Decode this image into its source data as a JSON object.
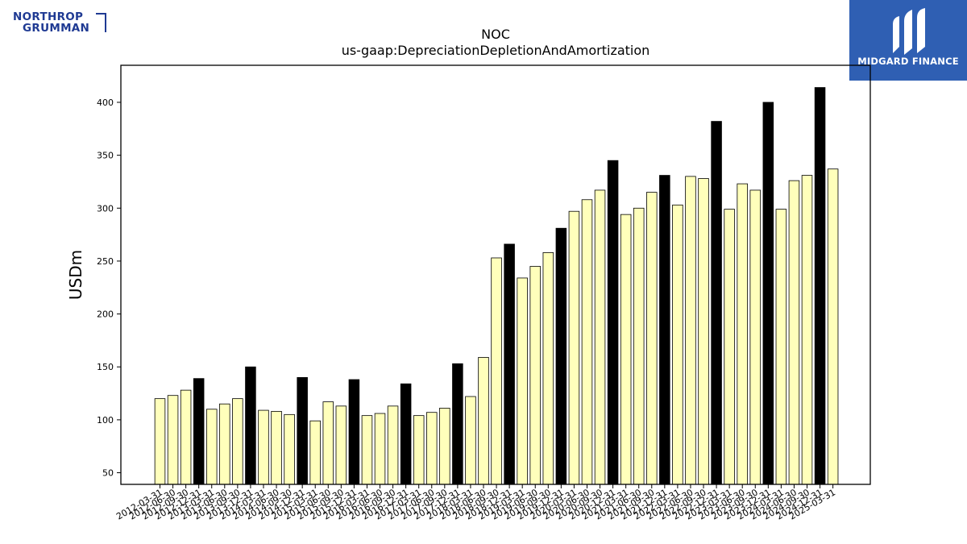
{
  "header": {
    "left_logo_line1": "NORTHROP",
    "left_logo_line2": "GRUMMAN",
    "right_logo_text": "MIDGARD FINANCE",
    "left_logo_color": "#1f3a93",
    "right_logo_bg": "#2f5fb3"
  },
  "chart_data": {
    "type": "bar",
    "title": "NOC",
    "subtitle": "us-gaap:DepreciationDepletionAndAmortization",
    "ylabel": "USDm",
    "xlabel": "",
    "ylim": [
      39,
      435
    ],
    "yticks": [
      50,
      100,
      150,
      200,
      250,
      300,
      350,
      400
    ],
    "grid": false,
    "colors": {
      "quarter": "#ffffbb",
      "year_end": "#000000",
      "edge": "#000000"
    },
    "categories": [
      "2012-03-31",
      "2012-06-30",
      "2012-09-30",
      "2012-12-31",
      "2013-03-31",
      "2013-06-30",
      "2013-09-30",
      "2013-12-31",
      "2014-03-31",
      "2014-06-30",
      "2014-09-30",
      "2014-12-31",
      "2015-03-31",
      "2015-06-30",
      "2015-09-30",
      "2015-12-31",
      "2016-03-31",
      "2016-06-30",
      "2016-09-30",
      "2016-12-31",
      "2017-03-31",
      "2017-06-30",
      "2017-09-30",
      "2017-12-31",
      "2018-03-31",
      "2018-06-30",
      "2018-09-30",
      "2018-12-31",
      "2019-03-31",
      "2019-06-30",
      "2019-09-30",
      "2019-12-31",
      "2020-03-31",
      "2020-06-30",
      "2020-09-30",
      "2020-12-31",
      "2021-03-31",
      "2021-06-30",
      "2021-09-30",
      "2021-12-31",
      "2022-03-31",
      "2022-06-30",
      "2022-09-30",
      "2022-12-31",
      "2023-03-31",
      "2023-06-30",
      "2023-09-30",
      "2023-12-31",
      "2024-03-31",
      "2024-06-30",
      "2024-09-30",
      "2024-12-31",
      "2025-03-31"
    ],
    "values": [
      120,
      123,
      128,
      139,
      110,
      115,
      120,
      150,
      109,
      108,
      105,
      140,
      99,
      117,
      113,
      138,
      104,
      106,
      113,
      134,
      104,
      107,
      111,
      153,
      122,
      159,
      253,
      266,
      234,
      245,
      258,
      281,
      297,
      308,
      317,
      345,
      294,
      300,
      315,
      331,
      303,
      330,
      328,
      382,
      299,
      323,
      317,
      400,
      299,
      326,
      331,
      414,
      337
    ],
    "year_end_flags": [
      false,
      false,
      false,
      true,
      false,
      false,
      false,
      true,
      false,
      false,
      false,
      true,
      false,
      false,
      false,
      true,
      false,
      false,
      false,
      true,
      false,
      false,
      false,
      true,
      false,
      false,
      false,
      true,
      false,
      false,
      false,
      true,
      false,
      false,
      false,
      true,
      false,
      false,
      false,
      true,
      false,
      false,
      false,
      true,
      false,
      false,
      false,
      true,
      false,
      false,
      false,
      true,
      false
    ]
  }
}
